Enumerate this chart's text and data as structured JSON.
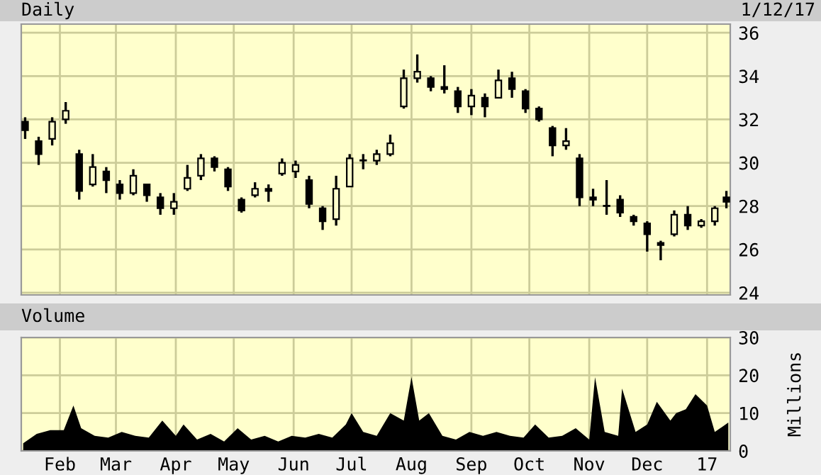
{
  "chart_data": [
    {
      "type": "candlestick",
      "title": "Daily",
      "annotations": [
        "1/12/17"
      ],
      "x": [
        "2016-01-14",
        "2016-01-21",
        "2016-01-28",
        "2016-02-04",
        "2016-02-11",
        "2016-02-18",
        "2016-02-25",
        "2016-03-03",
        "2016-03-10",
        "2016-03-17",
        "2016-03-24",
        "2016-03-31",
        "2016-04-07",
        "2016-04-14",
        "2016-04-21",
        "2016-04-28",
        "2016-05-05",
        "2016-05-12",
        "2016-05-19",
        "2016-05-26",
        "2016-06-02",
        "2016-06-09",
        "2016-06-16",
        "2016-06-23",
        "2016-06-30",
        "2016-07-07",
        "2016-07-14",
        "2016-07-21",
        "2016-07-28",
        "2016-08-04",
        "2016-08-11",
        "2016-08-18",
        "2016-08-25",
        "2016-09-01",
        "2016-09-08",
        "2016-09-15",
        "2016-09-22",
        "2016-09-29",
        "2016-10-06",
        "2016-10-13",
        "2016-10-20",
        "2016-10-27",
        "2016-11-03",
        "2016-11-10",
        "2016-11-17",
        "2016-11-24",
        "2016-12-01",
        "2016-12-08",
        "2016-12-15",
        "2016-12-22",
        "2016-12-29",
        "2017-01-05",
        "2017-01-11"
      ],
      "ohlc": [
        [
          31.9,
          32.1,
          31.1,
          31.5
        ],
        [
          31.0,
          31.2,
          29.9,
          30.4
        ],
        [
          31.1,
          32.1,
          30.8,
          31.9
        ],
        [
          32.0,
          32.8,
          31.8,
          32.4
        ],
        [
          30.4,
          30.6,
          28.3,
          28.7
        ],
        [
          29.0,
          30.4,
          28.9,
          29.8
        ],
        [
          29.6,
          29.8,
          28.6,
          29.2
        ],
        [
          29.0,
          29.2,
          28.3,
          28.6
        ],
        [
          28.6,
          29.7,
          28.5,
          29.4
        ],
        [
          29.0,
          29.0,
          28.2,
          28.5
        ],
        [
          28.4,
          28.6,
          27.6,
          27.9
        ],
        [
          27.9,
          28.6,
          27.6,
          28.2
        ],
        [
          28.8,
          29.9,
          28.7,
          29.3
        ],
        [
          29.4,
          30.4,
          29.2,
          30.2
        ],
        [
          30.2,
          30.3,
          29.6,
          29.8
        ],
        [
          29.7,
          29.8,
          28.7,
          28.9
        ],
        [
          28.3,
          28.4,
          27.7,
          27.8
        ],
        [
          28.5,
          29.1,
          28.4,
          28.8
        ],
        [
          28.8,
          29.0,
          28.2,
          28.7
        ],
        [
          29.5,
          30.2,
          29.4,
          30.0
        ],
        [
          29.6,
          30.1,
          29.3,
          29.9
        ],
        [
          29.2,
          29.4,
          27.9,
          28.1
        ],
        [
          27.9,
          28.0,
          26.9,
          27.3
        ],
        [
          27.4,
          29.4,
          27.1,
          28.8
        ],
        [
          28.9,
          30.4,
          28.9,
          30.2
        ],
        [
          30.1,
          30.4,
          29.7,
          30.1
        ],
        [
          30.1,
          30.6,
          29.9,
          30.4
        ],
        [
          30.4,
          31.3,
          30.3,
          30.9
        ],
        [
          32.6,
          34.3,
          32.5,
          33.9
        ],
        [
          33.9,
          35.0,
          33.7,
          34.2
        ],
        [
          33.9,
          34.0,
          33.3,
          33.5
        ],
        [
          33.5,
          34.5,
          33.2,
          33.4
        ],
        [
          33.3,
          33.5,
          32.3,
          32.6
        ],
        [
          32.6,
          33.4,
          32.2,
          33.1
        ],
        [
          33.0,
          33.2,
          32.1,
          32.6
        ],
        [
          33.0,
          34.3,
          33.0,
          33.8
        ],
        [
          33.9,
          34.2,
          33.0,
          33.4
        ],
        [
          33.3,
          33.4,
          32.3,
          32.5
        ],
        [
          32.5,
          32.6,
          31.9,
          32.0
        ],
        [
          31.6,
          31.7,
          30.3,
          30.8
        ],
        [
          30.8,
          31.6,
          30.6,
          31.0
        ],
        [
          30.2,
          30.4,
          28.0,
          28.4
        ],
        [
          28.4,
          28.8,
          28.0,
          28.3
        ],
        [
          28.0,
          29.2,
          27.6,
          28.0
        ],
        [
          28.3,
          28.5,
          27.5,
          27.7
        ],
        [
          27.5,
          27.6,
          27.1,
          27.3
        ],
        [
          27.2,
          27.3,
          25.9,
          26.7
        ],
        [
          26.3,
          26.4,
          25.5,
          26.2
        ],
        [
          26.7,
          27.8,
          26.6,
          27.6
        ],
        [
          27.6,
          28.0,
          26.9,
          27.1
        ],
        [
          27.1,
          27.4,
          27.0,
          27.3
        ],
        [
          27.3,
          28.0,
          27.1,
          27.9
        ],
        [
          28.4,
          28.7,
          27.9,
          28.2
        ]
      ],
      "color": "#000000",
      "xlim": [
        "2016-01-12",
        "2017-01-13"
      ],
      "ylim": [
        23.9,
        36.4
      ],
      "yticks": [
        24,
        26,
        28,
        30,
        32,
        34,
        36
      ],
      "xticks": [
        {
          "value": "2016-02-01",
          "label": null
        },
        {
          "value": "2016-03-01",
          "label": null
        },
        {
          "value": "2016-04-01",
          "label": null
        },
        {
          "value": "2016-05-01",
          "label": null
        },
        {
          "value": "2016-06-01",
          "label": null
        },
        {
          "value": "2016-07-01",
          "label": null
        },
        {
          "value": "2016-08-01",
          "label": null
        },
        {
          "value": "2016-09-01",
          "label": null
        },
        {
          "value": "2016-10-01",
          "label": null
        },
        {
          "value": "2016-11-01",
          "label": null
        },
        {
          "value": "2016-12-01",
          "label": null
        },
        {
          "value": "2017-01-01",
          "label": null
        }
      ],
      "tick_labels": "y",
      "grid": true
    },
    {
      "type": "area",
      "title": "Volume",
      "ylabel": "Millions",
      "x": [
        "2016-01-13",
        "2016-01-20",
        "2016-01-27",
        "2016-02-03",
        "2016-02-08",
        "2016-02-12",
        "2016-02-19",
        "2016-02-26",
        "2016-03-04",
        "2016-03-11",
        "2016-03-18",
        "2016-03-25",
        "2016-04-01",
        "2016-04-05",
        "2016-04-12",
        "2016-04-19",
        "2016-04-26",
        "2016-05-03",
        "2016-05-10",
        "2016-05-17",
        "2016-05-24",
        "2016-05-31",
        "2016-06-07",
        "2016-06-14",
        "2016-06-21",
        "2016-06-28",
        "2016-07-01",
        "2016-07-07",
        "2016-07-14",
        "2016-07-21",
        "2016-07-28",
        "2016-08-01",
        "2016-08-05",
        "2016-08-10",
        "2016-08-17",
        "2016-08-24",
        "2016-08-31",
        "2016-09-07",
        "2016-09-14",
        "2016-09-21",
        "2016-09-28",
        "2016-10-04",
        "2016-10-11",
        "2016-10-18",
        "2016-10-25",
        "2016-11-01",
        "2016-11-04",
        "2016-11-09",
        "2016-11-16",
        "2016-11-18",
        "2016-11-25",
        "2016-12-01",
        "2016-12-06",
        "2016-12-13",
        "2016-12-16",
        "2016-12-21",
        "2016-12-26",
        "2017-01-01",
        "2017-01-05",
        "2017-01-12"
      ],
      "values": [
        2,
        4.5,
        5.5,
        5.5,
        12,
        6,
        4,
        3.5,
        5,
        4,
        3.5,
        8,
        4,
        7,
        3,
        4.5,
        2.5,
        6,
        3,
        4,
        2.5,
        4,
        3.5,
        4.5,
        3.5,
        7,
        10,
        5,
        4,
        10,
        8,
        19.5,
        8,
        10,
        4,
        3,
        5,
        4,
        5,
        4,
        3.5,
        7,
        3.5,
        4,
        6,
        3,
        19.5,
        5,
        4,
        16.5,
        5,
        7,
        13,
        8,
        10,
        11,
        15,
        12,
        5,
        7.5
      ],
      "color": "#000000",
      "xlim": [
        "2016-01-12",
        "2017-01-13"
      ],
      "ylim": [
        0,
        30
      ],
      "yticks": [
        0,
        10,
        20,
        30
      ],
      "xticks": [
        {
          "value": "2016-02-01",
          "label": "Feb"
        },
        {
          "value": "2016-03-01",
          "label": "Mar"
        },
        {
          "value": "2016-04-01",
          "label": "Apr"
        },
        {
          "value": "2016-05-01",
          "label": "May"
        },
        {
          "value": "2016-06-01",
          "label": "Jun"
        },
        {
          "value": "2016-07-01",
          "label": "Jul"
        },
        {
          "value": "2016-08-01",
          "label": "Aug"
        },
        {
          "value": "2016-09-01",
          "label": "Sep"
        },
        {
          "value": "2016-10-01",
          "label": "Oct"
        },
        {
          "value": "2016-11-01",
          "label": "Nov"
        },
        {
          "value": "2016-12-01",
          "label": "Dec"
        },
        {
          "value": "2017-01-01",
          "label": "17"
        }
      ],
      "grid": true
    }
  ]
}
